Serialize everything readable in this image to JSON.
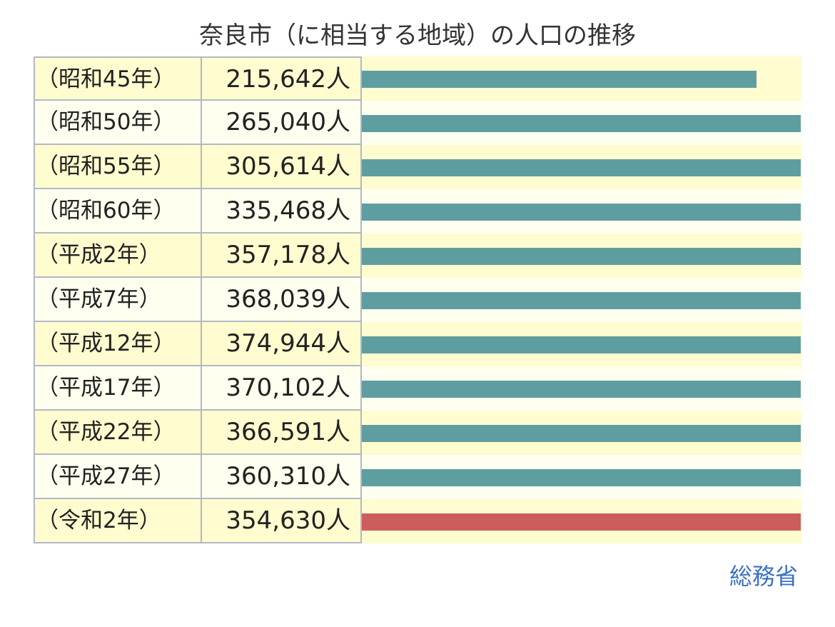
{
  "chart_data": {
    "type": "bar",
    "title": "奈良市（に相当する地域）の人口の推移",
    "categories": [
      "（昭和45年）",
      "（昭和50年）",
      "（昭和55年）",
      "（昭和60年）",
      "（平成2年）",
      "（平成7年）",
      "（平成12年）",
      "（平成17年）",
      "（平成22年）",
      "（平成27年）",
      "（令和2年）"
    ],
    "values": [
      215642,
      265040,
      305614,
      335468,
      357178,
      368039,
      374944,
      370102,
      366591,
      360310,
      354630
    ],
    "value_labels": [
      "215,642人",
      "265,040人",
      "305,614人",
      "335,468人",
      "357,178人",
      "368,039人",
      "374,944人",
      "370,102人",
      "366,591人",
      "360,310人",
      "354,630人"
    ],
    "highlight_index": 10,
    "bar_scale_max": 240000,
    "colors": {
      "bar": "#5f9ea0",
      "highlight": "#cd5c5c",
      "row_odd": "#fffccf",
      "row_even": "#fffff0"
    }
  },
  "source_label": "総務省"
}
